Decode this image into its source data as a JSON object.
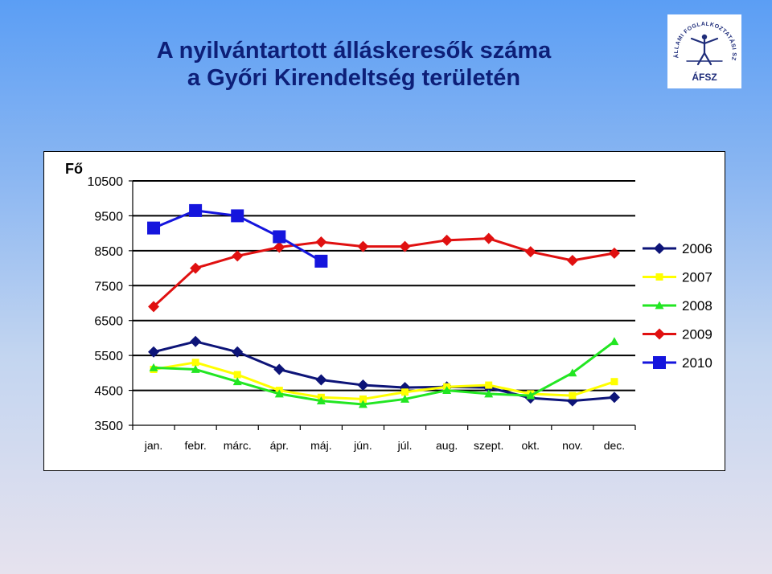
{
  "title": {
    "line1": "A nyilvántartott álláskeresők száma",
    "line2": "a Győri Kirendeltség területén"
  },
  "logo": {
    "icon": "afsz-logo",
    "arc_text": "ÁLLAMI FOGLALKOZTATÁSI SZOLGÁLAT",
    "abbreviation": "ÁFSZ",
    "color": "#1f2d7a"
  },
  "chart_data": {
    "type": "line",
    "ylabel": "Fő",
    "ylim": [
      3500,
      10500
    ],
    "yticks": [
      10500,
      9500,
      8500,
      7500,
      6500,
      5500,
      4500,
      3500
    ],
    "categories": [
      "jan.",
      "febr.",
      "márc.",
      "ápr.",
      "máj.",
      "jún.",
      "júl.",
      "aug.",
      "szept.",
      "okt.",
      "nov.",
      "dec."
    ],
    "grid": "horizontal",
    "legend": "right",
    "series": [
      {
        "name": "2006",
        "color": "#0d1478",
        "marker": "diamond",
        "values": [
          5600,
          5900,
          5600,
          5100,
          4800,
          4650,
          4580,
          4600,
          4580,
          4280,
          4200,
          4300
        ]
      },
      {
        "name": "2007",
        "color": "#ffff00",
        "marker": "square",
        "values": [
          5100,
          5300,
          4950,
          4500,
          4300,
          4250,
          4450,
          4600,
          4650,
          4400,
          4350,
          4750
        ]
      },
      {
        "name": "2008",
        "color": "#22e622",
        "marker": "triangle",
        "values": [
          5150,
          5100,
          4750,
          4400,
          4200,
          4100,
          4250,
          4500,
          4400,
          4350,
          5000,
          5900
        ]
      },
      {
        "name": "2009",
        "color": "#e01010",
        "marker": "diamond",
        "values": [
          6900,
          8000,
          8350,
          8600,
          8750,
          8620,
          8620,
          8800,
          8850,
          8470,
          8220,
          8430
        ]
      },
      {
        "name": "2010",
        "color": "#1515dd",
        "marker": "square",
        "values": [
          9150,
          9650,
          9500,
          8900,
          8200,
          null,
          null,
          null,
          null,
          null,
          null,
          null
        ]
      }
    ]
  }
}
